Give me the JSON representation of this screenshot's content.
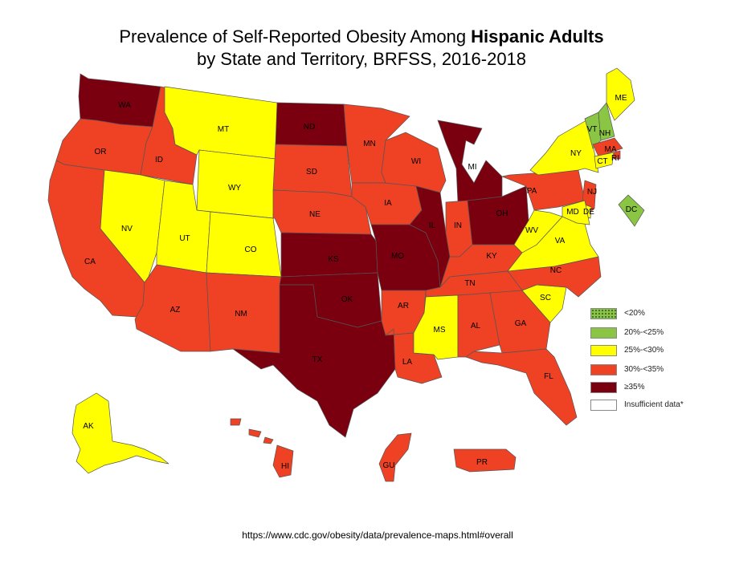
{
  "title": {
    "line1_prefix": "Prevalence of Self-Reported Obesity Among ",
    "line1_bold": "Hispanic Adults",
    "line2": "by State and Territory, BRFSS, 2016-2018"
  },
  "legend": [
    {
      "label": "<20%",
      "color": "#8bc34a",
      "pattern": "dots"
    },
    {
      "label": "20%-<25%",
      "color": "#8ac543"
    },
    {
      "label": "25%-<30%",
      "color": "#ffff00"
    },
    {
      "label": "30%-<35%",
      "color": "#ef4123"
    },
    {
      "label": "≥35%",
      "color": "#7a0010"
    },
    {
      "label": "Insufficient data*",
      "color": "#ffffff"
    }
  ],
  "map_data": {
    "categories": {
      "lt20": "<20%",
      "c20_25": "20%-<25%",
      "c25_30": "25%-<30%",
      "c30_35": "30%-<35%",
      "ge35": "≥35%",
      "insufficient": "Insufficient data*"
    },
    "states": [
      {
        "abbr": "WA",
        "category": "ge35"
      },
      {
        "abbr": "OR",
        "category": "c30_35"
      },
      {
        "abbr": "CA",
        "category": "c30_35"
      },
      {
        "abbr": "ID",
        "category": "c30_35"
      },
      {
        "abbr": "NV",
        "category": "c25_30"
      },
      {
        "abbr": "MT",
        "category": "c25_30"
      },
      {
        "abbr": "WY",
        "category": "c25_30"
      },
      {
        "abbr": "UT",
        "category": "c25_30"
      },
      {
        "abbr": "CO",
        "category": "c25_30"
      },
      {
        "abbr": "AZ",
        "category": "c30_35"
      },
      {
        "abbr": "NM",
        "category": "c30_35"
      },
      {
        "abbr": "ND",
        "category": "ge35"
      },
      {
        "abbr": "SD",
        "category": "c30_35"
      },
      {
        "abbr": "NE",
        "category": "c30_35"
      },
      {
        "abbr": "KS",
        "category": "ge35"
      },
      {
        "abbr": "OK",
        "category": "ge35"
      },
      {
        "abbr": "TX",
        "category": "ge35"
      },
      {
        "abbr": "MN",
        "category": "c30_35"
      },
      {
        "abbr": "IA",
        "category": "c30_35"
      },
      {
        "abbr": "MO",
        "category": "ge35"
      },
      {
        "abbr": "AR",
        "category": "c30_35"
      },
      {
        "abbr": "LA",
        "category": "c30_35"
      },
      {
        "abbr": "WI",
        "category": "c30_35"
      },
      {
        "abbr": "IL",
        "category": "ge35"
      },
      {
        "abbr": "MI",
        "category": "ge35"
      },
      {
        "abbr": "IN",
        "category": "c30_35"
      },
      {
        "abbr": "OH",
        "category": "ge35"
      },
      {
        "abbr": "KY",
        "category": "c30_35"
      },
      {
        "abbr": "TN",
        "category": "c30_35"
      },
      {
        "abbr": "MS",
        "category": "c25_30"
      },
      {
        "abbr": "AL",
        "category": "c30_35"
      },
      {
        "abbr": "GA",
        "category": "c30_35"
      },
      {
        "abbr": "FL",
        "category": "c30_35"
      },
      {
        "abbr": "SC",
        "category": "c25_30"
      },
      {
        "abbr": "NC",
        "category": "c30_35"
      },
      {
        "abbr": "VA",
        "category": "c25_30"
      },
      {
        "abbr": "WV",
        "category": "c25_30"
      },
      {
        "abbr": "PA",
        "category": "c30_35"
      },
      {
        "abbr": "NY",
        "category": "c25_30"
      },
      {
        "abbr": "VT",
        "category": "c20_25"
      },
      {
        "abbr": "NH",
        "category": "c20_25"
      },
      {
        "abbr": "ME",
        "category": "c25_30"
      },
      {
        "abbr": "MA",
        "category": "c30_35"
      },
      {
        "abbr": "RI",
        "category": "c30_35"
      },
      {
        "abbr": "CT",
        "category": "c25_30"
      },
      {
        "abbr": "NJ",
        "category": "c30_35"
      },
      {
        "abbr": "DE",
        "category": "c25_30"
      },
      {
        "abbr": "MD",
        "category": "c25_30"
      },
      {
        "abbr": "DC",
        "category": "c20_25"
      },
      {
        "abbr": "AK",
        "category": "c25_30"
      },
      {
        "abbr": "HI",
        "category": "c30_35"
      },
      {
        "abbr": "GU",
        "category": "c30_35"
      },
      {
        "abbr": "PR",
        "category": "c30_35"
      }
    ]
  },
  "source": "https://www.cdc.gov/obesity/data/prevalence-maps.html#overall"
}
